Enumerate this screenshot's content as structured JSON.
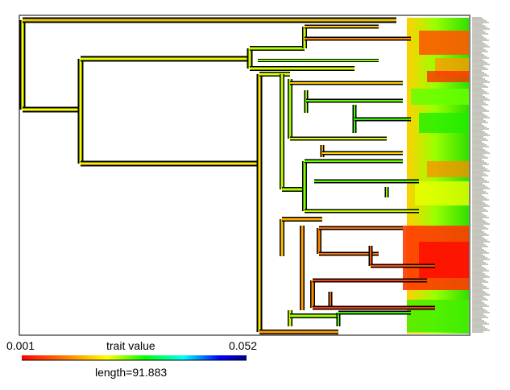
{
  "chart_data": {
    "type": "phylogenetic-tree-contmap",
    "legend": {
      "min_label": "0.001",
      "max_label": "0.052",
      "title": "trait value",
      "length_label": "length=91.883",
      "min": 0.001,
      "max": 0.052
    },
    "palette": [
      "#ff0000",
      "#ff8000",
      "#ffff00",
      "#00ff00",
      "#00ffff",
      "#0000ff",
      "#00008b"
    ],
    "tree_depth": 91.883
  }
}
